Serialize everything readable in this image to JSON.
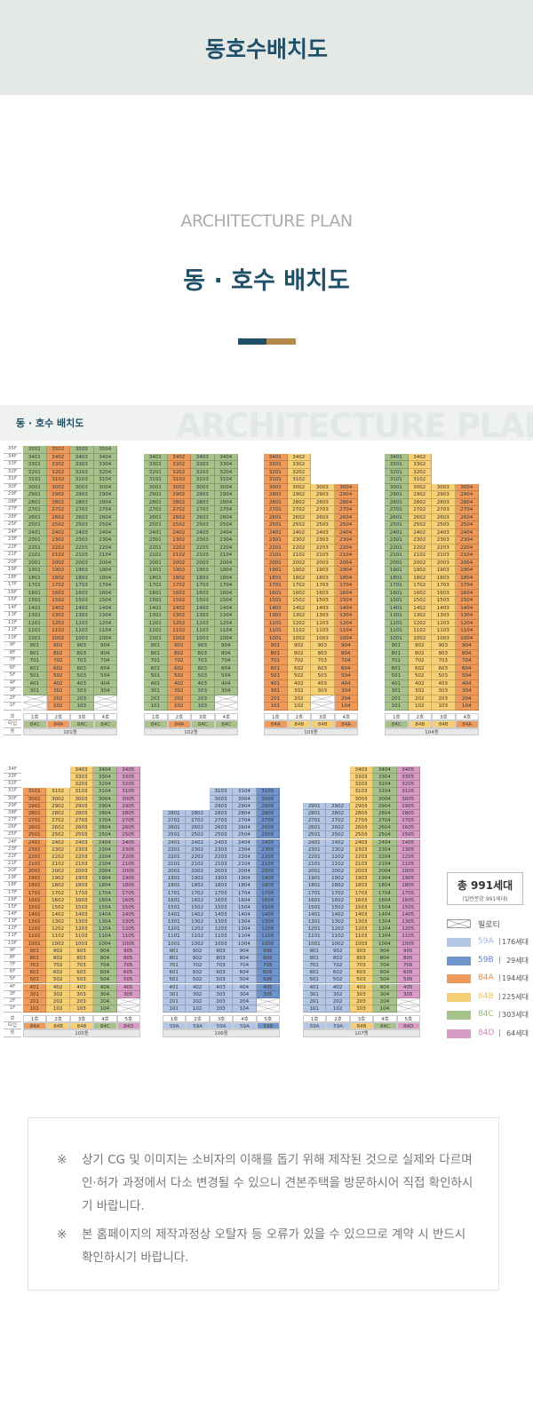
{
  "header": {
    "title": "동호수배치도"
  },
  "intro": {
    "eyebrow": "ARCHITECTURE PLAN",
    "title": "동 · 호수 배치도",
    "accent_colors": [
      "#1f5068",
      "#b38a4c"
    ]
  },
  "section": {
    "label": "동 · 호수 배치도",
    "watermark": "ARCHITECTURE PLAN"
  },
  "types": {
    "59A": "#b3c6e6",
    "59B": "#6f95cc",
    "84A": "#ee9a5a",
    "84B": "#f7cf75",
    "84C": "#a6c189",
    "84D": "#d89cc6"
  },
  "type_text_colors": {
    "59A": "#9fb5dc",
    "59B": "#5b85c2",
    "84A": "#e88a45",
    "84B": "#f0c35a",
    "84C": "#94b278",
    "84D": "#d08abd"
  },
  "labels": {
    "ho": "호",
    "type": "타입",
    "dong": "동",
    "floor_suffix": "F",
    "ho_suffix": "호"
  },
  "rows": [
    {
      "max_floor": 35,
      "buildings": [
        {
          "name": "101동",
          "lines": [
            {
              "type": "84C",
              "top": 35
            },
            {
              "type": "84A",
              "top": 35
            },
            {
              "type": "84C",
              "top": 35
            },
            {
              "type": "84C",
              "top": 35
            }
          ],
          "pilotis": [
            [
              1,
              1
            ],
            [
              1,
              2
            ],
            [
              4,
              1
            ],
            [
              4,
              2
            ]
          ]
        },
        {
          "name": "102동",
          "lines": [
            {
              "type": "84C",
              "top": 34
            },
            {
              "type": "84A",
              "top": 34
            },
            {
              "type": "84C",
              "top": 34
            },
            {
              "type": "84C",
              "top": 34
            }
          ],
          "pilotis": [
            [
              4,
              1
            ],
            [
              4,
              2
            ]
          ]
        },
        {
          "name": "103동",
          "lines": [
            {
              "type": "84A",
              "top": 34
            },
            {
              "type": "84B",
              "top": 34
            },
            {
              "type": "84B",
              "top": 30
            },
            {
              "type": "84A",
              "top": 30
            }
          ],
          "pilotis": [
            [
              3,
              1
            ],
            [
              3,
              2
            ]
          ]
        },
        {
          "name": "104동",
          "lines": [
            {
              "type": "84C",
              "top": 34
            },
            {
              "type": "84B",
              "top": 34
            },
            {
              "type": "84B",
              "top": 30
            },
            {
              "type": "84A",
              "top": 30
            }
          ],
          "pilotis": []
        }
      ]
    },
    {
      "max_floor": 34,
      "buildings": [
        {
          "name": "105동",
          "lines": [
            {
              "type": "84A",
              "top": 31
            },
            {
              "type": "84B",
              "top": 31
            },
            {
              "type": "84B",
              "top": 34
            },
            {
              "type": "84C",
              "top": 34
            },
            {
              "type": "84D",
              "top": 34
            }
          ],
          "pilotis": [
            [
              5,
              1
            ],
            [
              5,
              2
            ]
          ]
        },
        {
          "name": "106동",
          "lines": [
            {
              "type": "59A",
              "top": 28
            },
            {
              "type": "59A",
              "top": 28
            },
            {
              "type": "59A",
              "top": 31
            },
            {
              "type": "59A",
              "top": 31
            },
            {
              "type": "59B",
              "top": 31
            }
          ],
          "pilotis": [
            [
              5,
              1
            ],
            [
              5,
              2
            ]
          ]
        },
        {
          "name": "107동",
          "lines": [
            {
              "type": "59A",
              "top": 29
            },
            {
              "type": "59A",
              "top": 29
            },
            {
              "type": "84B",
              "top": 34
            },
            {
              "type": "84C",
              "top": 34
            },
            {
              "type": "84D",
              "top": 34
            }
          ],
          "pilotis": [
            [
              5,
              1
            ],
            [
              5,
              2
            ]
          ]
        }
      ]
    }
  ],
  "legend": {
    "total": "총 991세대",
    "sub": "(일반분양 991세대)",
    "pilotis": "필로티",
    "items": [
      {
        "type": "59A",
        "count": "176세대"
      },
      {
        "type": "59B",
        "count": "29세대"
      },
      {
        "type": "84A",
        "count": "194세대"
      },
      {
        "type": "84B",
        "count": "225세대"
      },
      {
        "type": "84C",
        "count": "303세대"
      },
      {
        "type": "84D",
        "count": "64세대"
      }
    ],
    "sep": "|"
  },
  "notice": {
    "mark": "※",
    "items": [
      "상기 CG 및 이미지는 소비자의 이해를 돕기 위해 제작된 것으로 실제와 다르며 인·허가 과정에서 다소 변경될 수 있으니 견본주택을 방문하시어 직접 확인하시기 바랍니다.",
      "본 홈페이지의 제작과정상 오탈자 등 오류가 있을 수 있으므로 계약 시 반드시 확인하시기 바랍니다."
    ]
  }
}
